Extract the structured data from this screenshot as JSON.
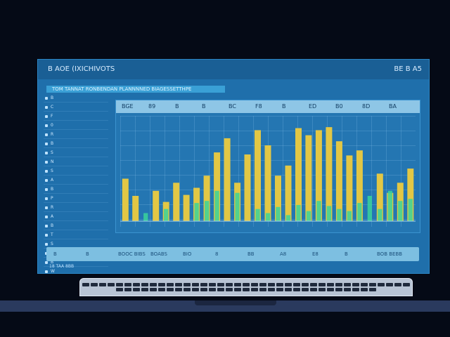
{
  "window": {
    "title": "B AOE (IXICHIVOTS",
    "right_label": "BE B A5"
  },
  "strip_text": "TOM TANNAT RONBENDAN PLANNNNED BIAGESSETTHPE",
  "sidebar": {
    "items": [
      "B",
      "C",
      "F",
      "0",
      "R",
      "B",
      "S",
      "N",
      "S",
      "A",
      "B",
      "P",
      "R",
      "A",
      "B",
      "T",
      "S",
      "N",
      "B",
      "W",
      "D"
    ]
  },
  "chart_header": [
    "BGE",
    "89",
    "B",
    "B",
    "BC",
    "F8",
    "B",
    "ED",
    "B0",
    "8D",
    "BA"
  ],
  "chart_data": {
    "type": "bar",
    "series": [
      {
        "name": "",
        "color": "#e2c745",
        "values": [
          42,
          25,
          0,
          30,
          19,
          38,
          26,
          33,
          45,
          68,
          82,
          38,
          66,
          90,
          75,
          45,
          55,
          92,
          85,
          90,
          93,
          79,
          65,
          70,
          0,
          47,
          28,
          38,
          52
        ]
      },
      {
        "name": "",
        "color": "#3ad39a",
        "values": [
          0,
          0,
          8,
          0,
          12,
          0,
          0,
          18,
          20,
          30,
          0,
          28,
          0,
          12,
          8,
          14,
          6,
          16,
          10,
          20,
          15,
          12,
          10,
          18,
          25,
          12,
          30,
          20,
          22
        ]
      }
    ],
    "ylim": [
      0,
      100
    ]
  },
  "bottombar": [
    "B",
    "B",
    "BOOC BIBS",
    "BOABS",
    "BIO",
    "8",
    "BB",
    "A8",
    "E8",
    "B",
    "BOB BEBB"
  ],
  "status": "18 TAA 8BB",
  "colors": {
    "screen": "#1f6fab",
    "accent": "#3aa0d6",
    "bar_yellow": "#e2c745",
    "bar_green": "#3ad39a"
  }
}
